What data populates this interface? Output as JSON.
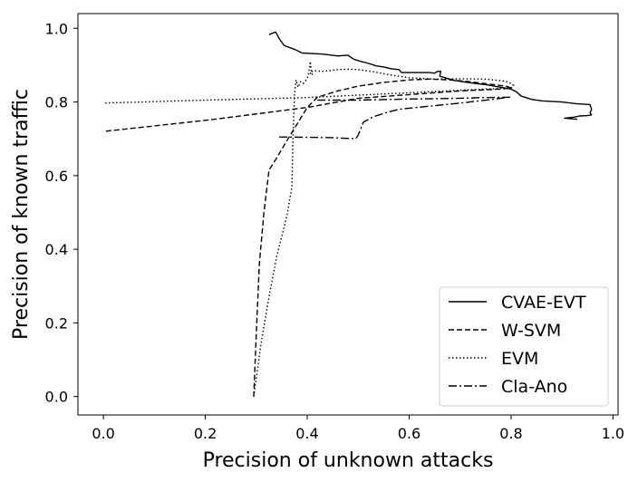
{
  "chart_data": {
    "type": "line",
    "title": "",
    "xlabel": "Precision of unknown attacks",
    "ylabel": "Precision of known traffic",
    "xlim": [
      -0.05,
      1.01
    ],
    "ylim": [
      -0.05,
      1.04
    ],
    "xticks": [
      0.0,
      0.2,
      0.4,
      0.6,
      0.8,
      1.0
    ],
    "xtick_labels": [
      "0.0",
      "0.2",
      "0.4",
      "0.6",
      "0.8",
      "1.0"
    ],
    "yticks": [
      0.0,
      0.2,
      0.4,
      0.6,
      0.8,
      1.0
    ],
    "ytick_labels": [
      "0.0",
      "0.2",
      "0.4",
      "0.6",
      "0.8",
      "1.0"
    ],
    "grid": false,
    "legend": "bottom-right",
    "series": [
      {
        "name": "CVAE-EVT",
        "style": "solid",
        "color": "#000000",
        "x": [
          0.325,
          0.338,
          0.346,
          0.355,
          0.375,
          0.39,
          0.405,
          0.43,
          0.46,
          0.48,
          0.49,
          0.505,
          0.52,
          0.535,
          0.55,
          0.565,
          0.58,
          0.585,
          0.62,
          0.64,
          0.65,
          0.655,
          0.662,
          0.66,
          0.675,
          0.69,
          0.72,
          0.75,
          0.78,
          0.8,
          0.81,
          0.82,
          0.84,
          0.86,
          0.9,
          0.93,
          0.955,
          0.958,
          0.955,
          0.958,
          0.95,
          0.935,
          0.925,
          0.905,
          0.93
        ],
        "y": [
          0.983,
          0.99,
          0.97,
          0.953,
          0.943,
          0.933,
          0.932,
          0.93,
          0.925,
          0.927,
          0.917,
          0.91,
          0.905,
          0.898,
          0.895,
          0.89,
          0.888,
          0.88,
          0.88,
          0.88,
          0.878,
          0.883,
          0.883,
          0.87,
          0.864,
          0.858,
          0.852,
          0.847,
          0.84,
          0.835,
          0.828,
          0.816,
          0.807,
          0.803,
          0.8,
          0.795,
          0.793,
          0.78,
          0.77,
          0.765,
          0.763,
          0.762,
          0.759,
          0.756,
          0.753
        ]
      },
      {
        "name": "W-SVM",
        "style": "dashed",
        "color": "#000000",
        "x": [
          0.295,
          0.3,
          0.306,
          0.315,
          0.325,
          0.34,
          0.358,
          0.38,
          0.4,
          0.42,
          0.46,
          0.5,
          0.55,
          0.6,
          0.64,
          0.68,
          0.72,
          0.76,
          0.79,
          0.8,
          0.78,
          0.7,
          0.6,
          0.5,
          0.4,
          0.2,
          0.0
        ],
        "y": [
          0.0,
          0.17,
          0.36,
          0.5,
          0.615,
          0.648,
          0.69,
          0.74,
          0.785,
          0.813,
          0.83,
          0.843,
          0.853,
          0.86,
          0.862,
          0.86,
          0.855,
          0.848,
          0.843,
          0.838,
          0.835,
          0.83,
          0.82,
          0.81,
          0.785,
          0.75,
          0.72
        ]
      },
      {
        "name": "EVM",
        "style": "dotted",
        "color": "#000000",
        "x": [
          0.295,
          0.31,
          0.325,
          0.34,
          0.36,
          0.37,
          0.372,
          0.375,
          0.378,
          0.382,
          0.387,
          0.392,
          0.397,
          0.402,
          0.406,
          0.408,
          0.41,
          0.405,
          0.413,
          0.43,
          0.46,
          0.48,
          0.5,
          0.53,
          0.56,
          0.6,
          0.65,
          0.7,
          0.75,
          0.78,
          0.795,
          0.805,
          0.8,
          0.7,
          0.6,
          0.4,
          0.2,
          0.0
        ],
        "y": [
          0.0,
          0.15,
          0.27,
          0.38,
          0.49,
          0.57,
          0.7,
          0.82,
          0.86,
          0.84,
          0.855,
          0.85,
          0.858,
          0.87,
          0.91,
          0.885,
          0.873,
          0.88,
          0.885,
          0.883,
          0.888,
          0.889,
          0.888,
          0.882,
          0.874,
          0.866,
          0.862,
          0.863,
          0.862,
          0.858,
          0.854,
          0.845,
          0.838,
          0.832,
          0.825,
          0.812,
          0.805,
          0.797
        ]
      },
      {
        "name": "Cla-Ano",
        "style": "dashdot",
        "color": "#000000",
        "x": [
          0.345,
          0.4,
          0.45,
          0.495,
          0.5,
          0.51,
          0.53,
          0.56,
          0.58,
          0.6,
          0.65,
          0.7,
          0.75,
          0.78,
          0.8,
          0.75,
          0.7,
          0.6,
          0.5,
          0.42
        ],
        "y": [
          0.705,
          0.704,
          0.703,
          0.7,
          0.71,
          0.745,
          0.76,
          0.773,
          0.78,
          0.783,
          0.79,
          0.797,
          0.805,
          0.81,
          0.813,
          0.812,
          0.81,
          0.808,
          0.805,
          0.805
        ]
      }
    ]
  }
}
